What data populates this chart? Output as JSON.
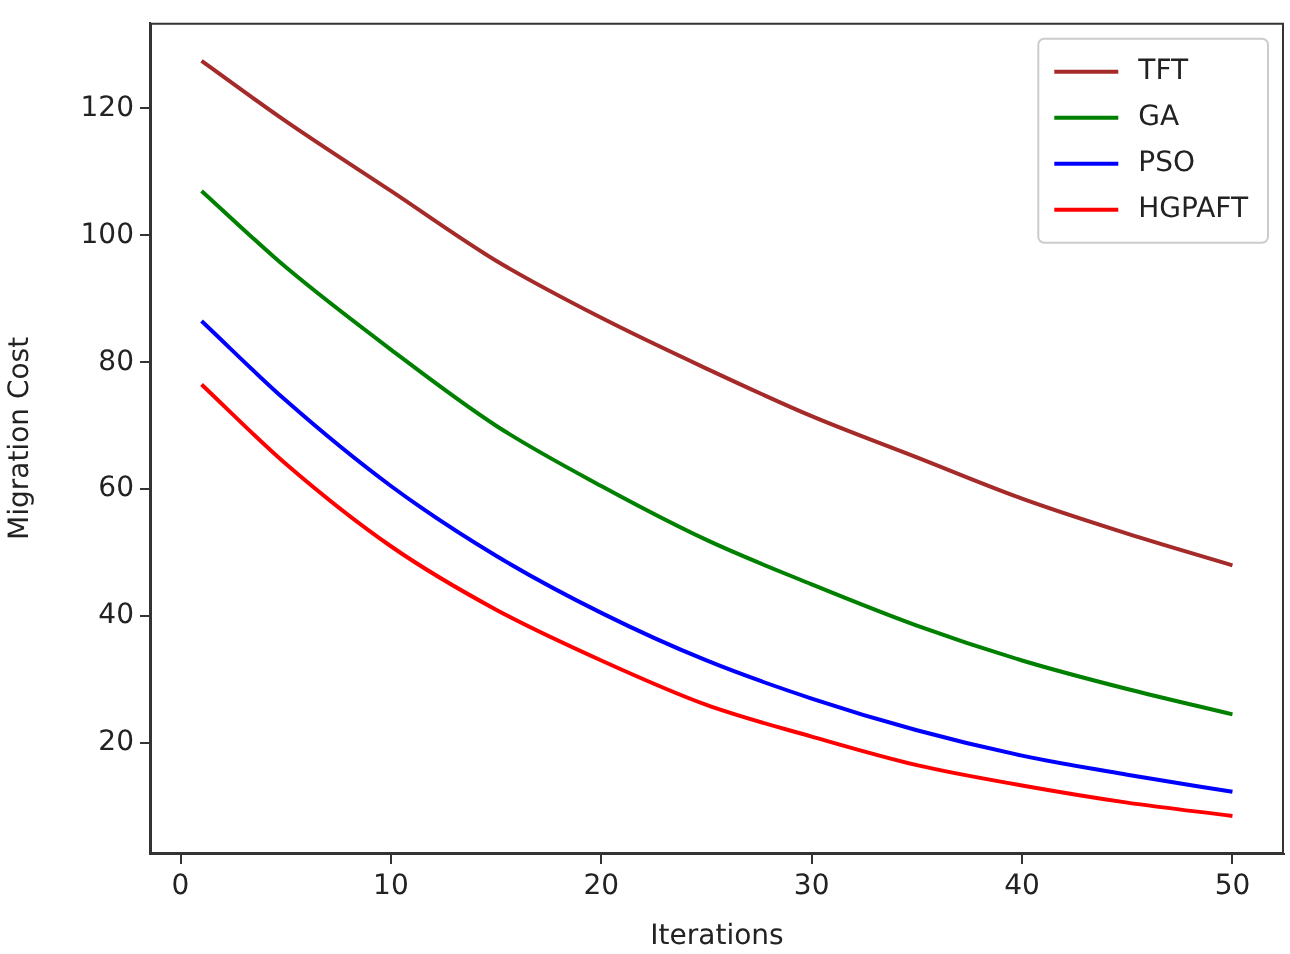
{
  "chart_data": {
    "type": "line",
    "xlabel": "Iterations",
    "ylabel": "Migration Cost",
    "x": [
      1,
      5,
      10,
      15,
      20,
      25,
      30,
      35,
      40,
      45,
      50
    ],
    "series": [
      {
        "name": "TFT",
        "color": "#a52a2a",
        "values": [
          127.5,
          118,
          107,
          96,
          87,
          79,
          71.5,
          65,
          58.5,
          53,
          48
        ]
      },
      {
        "name": "GA",
        "color": "#008000",
        "values": [
          107,
          95,
          82,
          70,
          60.5,
          52,
          45,
          38.5,
          33,
          28.5,
          24.5
        ]
      },
      {
        "name": "PSO",
        "color": "#0000ff",
        "values": [
          86.5,
          74,
          60.5,
          49.5,
          40.5,
          33,
          27,
          22,
          18,
          15,
          12.3
        ]
      },
      {
        "name": "HGPAFT",
        "color": "#ff0000",
        "values": [
          76.5,
          64,
          51,
          41,
          33,
          26,
          21,
          16.5,
          13.3,
          10.6,
          8.5
        ]
      }
    ],
    "xlim": [
      -1.45,
      52.45
    ],
    "xticks": [
      0,
      10,
      20,
      30,
      40,
      50
    ],
    "ylim": [
      2.5,
      133.5
    ],
    "yticks": [
      20,
      40,
      60,
      80,
      100,
      120
    ],
    "grid": false,
    "legend": "top right",
    "marker": "none",
    "line_style": "solid"
  }
}
